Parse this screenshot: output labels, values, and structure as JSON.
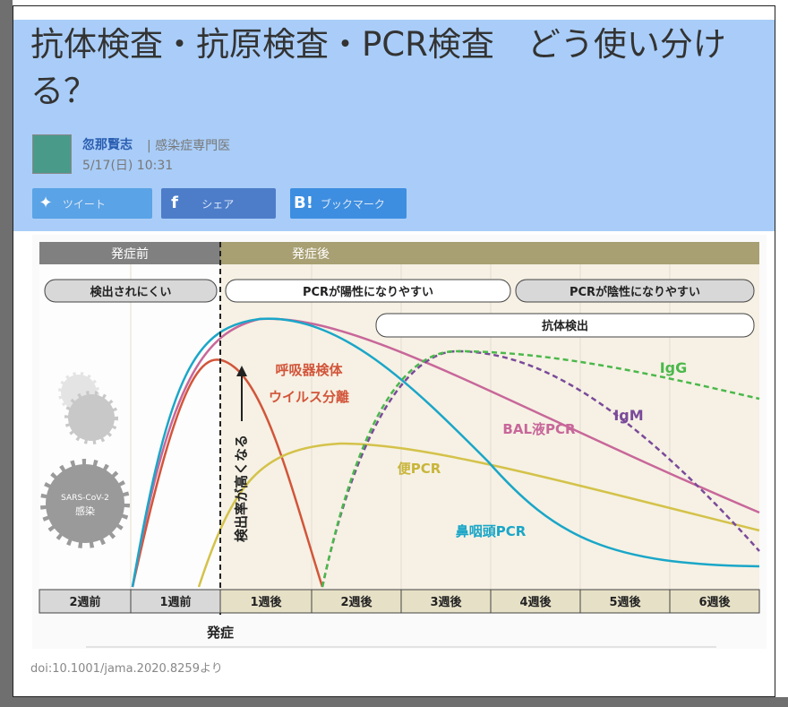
{
  "header": {
    "title": "抗体検査・抗原検査・PCR検査　どう使い分ける？"
  },
  "author": {
    "name": "忽那賢志",
    "role": "| 感染症専門医",
    "date": "5/17(日) 10:31"
  },
  "share": [
    "ツイート",
    "シェア",
    "ブックマーク"
  ],
  "figure": {
    "phases": [
      "発症前",
      "発症後"
    ],
    "pills": [
      "検出されにくい",
      "PCRが陽性になりやすい",
      "PCRが陰性になりやすい",
      "抗体検出"
    ],
    "arrow_label": "検出率が高くなる",
    "curve_labels": [
      "呼吸器検体",
      "ウイルス分離",
      "IgG",
      "IgM",
      "BAL液PCR",
      "便PCR",
      "鼻咽頭PCR"
    ],
    "virus_labels": [
      "SARS-CoV-2",
      "感染"
    ],
    "weeks": [
      "2週前",
      "1週前",
      "1週後",
      "2週後",
      "3週後",
      "4週後",
      "5週後",
      "6週後"
    ],
    "onset": "発症"
  },
  "caption": "doi:10.1001/jama.2020.8259より"
}
